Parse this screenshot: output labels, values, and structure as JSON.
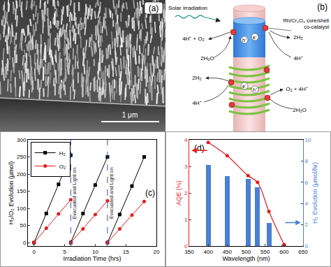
{
  "panel_a": {
    "label": "(a)",
    "scale_bar": "1 μm"
  },
  "panel_b": {
    "label": "(b)",
    "light": "Solar irradiation",
    "cocatalyst": [
      "Rh/Cr₂O₃ core/shell",
      "co-catalyst"
    ],
    "upper_left": [
      "4H⁺ + O₂",
      "2H₂O"
    ],
    "upper_right": [
      "2H₂",
      "4H⁺"
    ],
    "upper_carriers": [
      "h⁺",
      "e⁻"
    ],
    "lower_carriers": [
      "e⁻",
      "h⁺"
    ],
    "lower_left": [
      "2H₂",
      "4H⁺"
    ],
    "lower_right": [
      "O₂ + 4H⁺",
      "2H₂O"
    ]
  },
  "chart_data": [
    {
      "type": "line",
      "panel_label": "(c)",
      "x_label": "Irradiation Time (hrs)",
      "y_label": "H₂/O₂ Evolution (μmol)",
      "x": [
        0,
        2,
        4,
        6,
        6,
        6,
        8,
        10,
        12,
        12,
        12,
        14,
        16,
        18
      ],
      "series": [
        {
          "name": "H₂",
          "color": "#000000",
          "marker": "square",
          "values": [
            0,
            85,
            170,
            255,
            null,
            0,
            85,
            168,
            250,
            null,
            0,
            82,
            165,
            250
          ]
        },
        {
          "name": "O₂",
          "color": "#e8191e",
          "marker": "circle",
          "values": [
            0,
            42,
            84,
            125,
            null,
            0,
            40,
            82,
            122,
            null,
            0,
            40,
            80,
            120
          ]
        }
      ],
      "xlim": [
        -1,
        20
      ],
      "xticks": [
        0,
        5,
        10,
        15,
        20
      ],
      "ylim": [
        -10,
        300
      ],
      "yticks": [
        0,
        50,
        100,
        150,
        200,
        250,
        300
      ],
      "legend": "top-left",
      "annotations": [
        {
          "x": 6,
          "text": "Evacuated and Light on"
        },
        {
          "x": 12,
          "text": "Evacuated and Light on"
        }
      ]
    },
    {
      "type": "bar",
      "panel_label": "(d)",
      "x_label": "Wavelength (nm)",
      "y_label": "AQE (%)",
      "y2_label": "H₂ Evolution (μmol/hr)",
      "x": [
        400,
        450,
        505,
        530,
        560,
        600
      ],
      "series": [
        {
          "type": "bar",
          "axis": "y2",
          "color": "#4a7fd4",
          "values": [
            7.6,
            6.6,
            6.3,
            5.5,
            2.2,
            0.1
          ]
        },
        {
          "type": "line",
          "color": "#e8191e",
          "marker": "circle",
          "values": [
            3.9,
            3.4,
            2.65,
            2.4,
            1.3,
            0.05
          ]
        }
      ],
      "xlim": [
        350,
        650
      ],
      "xticks": [
        350,
        400,
        450,
        500,
        550,
        600,
        650
      ],
      "ylim": [
        0,
        4
      ],
      "yticks": [
        0,
        1,
        2,
        3,
        4
      ],
      "y2lim": [
        0,
        10
      ],
      "y2ticks": [
        0,
        2,
        4,
        6,
        8,
        10
      ]
    }
  ]
}
